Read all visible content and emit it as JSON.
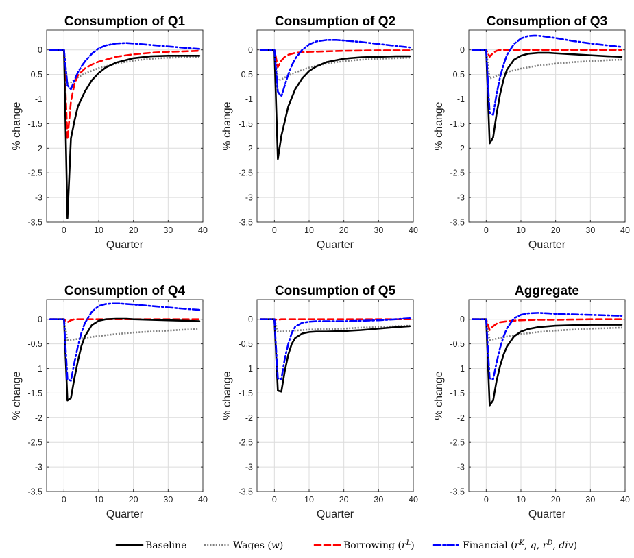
{
  "chart_data": [
    {
      "type": "line",
      "title": "Consumption of Q1",
      "xlabel": "Quarter",
      "ylabel": "% change",
      "xlim": [
        -5,
        40
      ],
      "ylim": [
        -3.5,
        0.4
      ],
      "xticks": [
        0,
        10,
        20,
        30,
        40
      ],
      "yticks": [
        0,
        -0.5,
        -1,
        -1.5,
        -2,
        -2.5,
        -3,
        -3.5
      ],
      "grid": true,
      "series": [
        {
          "name": "Baseline",
          "color": "#000000",
          "style": "solid",
          "x": [
            -4,
            0,
            1,
            2,
            3,
            4,
            6,
            8,
            10,
            12,
            15,
            20,
            25,
            30,
            35,
            39
          ],
          "y": [
            0,
            0,
            -3.42,
            -1.8,
            -1.45,
            -1.15,
            -0.85,
            -0.62,
            -0.47,
            -0.36,
            -0.26,
            -0.17,
            -0.13,
            -0.12,
            -0.12,
            -0.12
          ]
        },
        {
          "name": "Wages (w)",
          "color": "#808080",
          "style": "dotted",
          "x": [
            -4,
            0,
            1,
            2,
            4,
            6,
            10,
            15,
            20,
            25,
            30,
            35,
            39
          ],
          "y": [
            0,
            0,
            -0.7,
            -0.66,
            -0.56,
            -0.48,
            -0.37,
            -0.28,
            -0.22,
            -0.18,
            -0.16,
            -0.15,
            -0.14
          ]
        },
        {
          "name": "Borrowing (r^L)",
          "color": "#ff0000",
          "style": "dashed",
          "x": [
            -4,
            0,
            1,
            2,
            3,
            4,
            6,
            8,
            10,
            15,
            20,
            25,
            30,
            35,
            39
          ],
          "y": [
            0,
            0,
            -1.82,
            -1.05,
            -0.7,
            -0.52,
            -0.38,
            -0.3,
            -0.24,
            -0.14,
            -0.09,
            -0.06,
            -0.04,
            -0.03,
            -0.02
          ]
        },
        {
          "name": "Financial (r^K, q, r^D, div)",
          "color": "#0000ff",
          "style": "dashdot",
          "x": [
            -4,
            0,
            1,
            2,
            3,
            4,
            5,
            6,
            8,
            10,
            12,
            15,
            18,
            20,
            25,
            30,
            35,
            39
          ],
          "y": [
            0,
            0,
            -0.72,
            -0.8,
            -0.62,
            -0.46,
            -0.34,
            -0.24,
            -0.08,
            0.03,
            0.09,
            0.13,
            0.14,
            0.13,
            0.1,
            0.07,
            0.04,
            0.02
          ]
        }
      ]
    },
    {
      "type": "line",
      "title": "Consumption of Q2",
      "xlabel": "Quarter",
      "ylabel": "% change",
      "xlim": [
        -5,
        40
      ],
      "ylim": [
        -3.5,
        0.4
      ],
      "xticks": [
        0,
        10,
        20,
        30,
        40
      ],
      "yticks": [
        0,
        -0.5,
        -1,
        -1.5,
        -2,
        -2.5,
        -3,
        -3.5
      ],
      "grid": true,
      "series": [
        {
          "name": "Baseline",
          "color": "#000000",
          "style": "solid",
          "x": [
            -4,
            0,
            1,
            2,
            3,
            4,
            6,
            8,
            10,
            12,
            15,
            20,
            25,
            30,
            35,
            39
          ],
          "y": [
            0,
            0,
            -2.22,
            -1.75,
            -1.45,
            -1.15,
            -0.8,
            -0.58,
            -0.43,
            -0.34,
            -0.25,
            -0.18,
            -0.15,
            -0.14,
            -0.13,
            -0.13
          ]
        },
        {
          "name": "Wages (w)",
          "color": "#808080",
          "style": "dotted",
          "x": [
            -4,
            0,
            1,
            2,
            4,
            6,
            10,
            15,
            20,
            25,
            30,
            35,
            39
          ],
          "y": [
            0,
            0,
            -0.62,
            -0.6,
            -0.52,
            -0.46,
            -0.36,
            -0.28,
            -0.23,
            -0.2,
            -0.18,
            -0.17,
            -0.16
          ]
        },
        {
          "name": "Borrowing (r^L)",
          "color": "#ff0000",
          "style": "dashed",
          "x": [
            -4,
            0,
            1,
            2,
            3,
            4,
            6,
            8,
            10,
            15,
            20,
            30,
            39
          ],
          "y": [
            0,
            0,
            -0.35,
            -0.22,
            -0.14,
            -0.1,
            -0.06,
            -0.05,
            -0.04,
            -0.03,
            -0.02,
            -0.01,
            -0.01
          ]
        },
        {
          "name": "Financial (r^K, q, r^D, div)",
          "color": "#0000ff",
          "style": "dashdot",
          "x": [
            -4,
            0,
            1,
            2,
            3,
            4,
            5,
            6,
            8,
            10,
            12,
            15,
            18,
            20,
            25,
            30,
            35,
            39
          ],
          "y": [
            0,
            0,
            -0.85,
            -0.95,
            -0.72,
            -0.5,
            -0.32,
            -0.18,
            0.0,
            0.11,
            0.17,
            0.2,
            0.2,
            0.19,
            0.16,
            0.12,
            0.08,
            0.05
          ]
        }
      ]
    },
    {
      "type": "line",
      "title": "Consumption of Q3",
      "xlabel": "Quarter",
      "ylabel": "% change",
      "xlim": [
        -5,
        40
      ],
      "ylim": [
        -3.5,
        0.4
      ],
      "xticks": [
        0,
        10,
        20,
        30,
        40
      ],
      "yticks": [
        0,
        -0.5,
        -1,
        -1.5,
        -2,
        -2.5,
        -3,
        -3.5
      ],
      "grid": true,
      "series": [
        {
          "name": "Baseline",
          "color": "#000000",
          "style": "solid",
          "x": [
            -4,
            0,
            1,
            2,
            3,
            4,
            5,
            6,
            8,
            10,
            12,
            15,
            18,
            20,
            25,
            30,
            35,
            39
          ],
          "y": [
            0,
            0,
            -1.9,
            -1.78,
            -1.3,
            -0.9,
            -0.6,
            -0.4,
            -0.2,
            -0.12,
            -0.08,
            -0.06,
            -0.06,
            -0.07,
            -0.09,
            -0.11,
            -0.13,
            -0.14
          ]
        },
        {
          "name": "Wages (w)",
          "color": "#808080",
          "style": "dotted",
          "x": [
            -4,
            0,
            1,
            2,
            4,
            6,
            10,
            15,
            20,
            25,
            30,
            35,
            39
          ],
          "y": [
            0,
            0,
            -0.58,
            -0.56,
            -0.5,
            -0.45,
            -0.38,
            -0.32,
            -0.28,
            -0.25,
            -0.23,
            -0.21,
            -0.2
          ]
        },
        {
          "name": "Borrowing (r^L)",
          "color": "#ff0000",
          "style": "dashed",
          "x": [
            -4,
            0,
            1,
            2,
            3,
            4,
            6,
            10,
            20,
            30,
            39
          ],
          "y": [
            0,
            0,
            -0.14,
            -0.06,
            -0.02,
            0.0,
            0.0,
            0.0,
            0.0,
            0.0,
            0.0
          ]
        },
        {
          "name": "Financial (r^K, q, r^D, div)",
          "color": "#0000ff",
          "style": "dashdot",
          "x": [
            -4,
            0,
            1,
            2,
            3,
            4,
            5,
            6,
            8,
            10,
            12,
            14,
            16,
            20,
            25,
            30,
            35,
            39
          ],
          "y": [
            0,
            0,
            -1.28,
            -1.32,
            -0.9,
            -0.55,
            -0.3,
            -0.1,
            0.12,
            0.23,
            0.28,
            0.29,
            0.28,
            0.24,
            0.18,
            0.13,
            0.09,
            0.06
          ]
        }
      ]
    },
    {
      "type": "line",
      "title": "Consumption of Q4",
      "xlabel": "Quarter",
      "ylabel": "% change",
      "xlim": [
        -5,
        40
      ],
      "ylim": [
        -3.5,
        0.4
      ],
      "xticks": [
        0,
        10,
        20,
        30,
        40
      ],
      "yticks": [
        0,
        -0.5,
        -1,
        -1.5,
        -2,
        -2.5,
        -3,
        -3.5
      ],
      "grid": true,
      "series": [
        {
          "name": "Baseline",
          "color": "#000000",
          "style": "solid",
          "x": [
            -4,
            0,
            1,
            2,
            3,
            4,
            5,
            6,
            8,
            10,
            12,
            15,
            18,
            20,
            25,
            30,
            35,
            39
          ],
          "y": [
            0,
            0,
            -1.65,
            -1.6,
            -1.2,
            -0.85,
            -0.55,
            -0.35,
            -0.12,
            -0.03,
            0.0,
            0.01,
            0.01,
            0.0,
            -0.01,
            -0.02,
            -0.03,
            -0.04
          ]
        },
        {
          "name": "Wages (w)",
          "color": "#808080",
          "style": "dotted",
          "x": [
            -4,
            0,
            1,
            2,
            4,
            6,
            10,
            15,
            20,
            25,
            30,
            35,
            39
          ],
          "y": [
            0,
            0,
            -0.42,
            -0.42,
            -0.4,
            -0.38,
            -0.34,
            -0.3,
            -0.27,
            -0.25,
            -0.23,
            -0.21,
            -0.2
          ]
        },
        {
          "name": "Borrowing (r^L)",
          "color": "#ff0000",
          "style": "dashed",
          "x": [
            -4,
            0,
            1,
            2,
            3,
            4,
            6,
            10,
            20,
            30,
            39
          ],
          "y": [
            0,
            0,
            -0.06,
            -0.02,
            0.0,
            0.0,
            0.0,
            0.0,
            0.0,
            0.0,
            0.0
          ]
        },
        {
          "name": "Financial (r^K, q, r^D, div)",
          "color": "#0000ff",
          "style": "dashdot",
          "x": [
            -4,
            0,
            1,
            2,
            3,
            4,
            5,
            6,
            8,
            10,
            12,
            14,
            16,
            20,
            25,
            30,
            35,
            39
          ],
          "y": [
            0,
            0,
            -1.22,
            -1.25,
            -0.88,
            -0.55,
            -0.28,
            -0.08,
            0.15,
            0.27,
            0.31,
            0.32,
            0.32,
            0.3,
            0.27,
            0.24,
            0.21,
            0.19
          ]
        }
      ]
    },
    {
      "type": "line",
      "title": "Consumption of Q5",
      "xlabel": "Quarter",
      "ylabel": "% change",
      "xlim": [
        -5,
        40
      ],
      "ylim": [
        -3.5,
        0.4
      ],
      "xticks": [
        0,
        10,
        20,
        30,
        40
      ],
      "yticks": [
        0,
        -0.5,
        -1,
        -1.5,
        -2,
        -2.5,
        -3,
        -3.5
      ],
      "grid": true,
      "series": [
        {
          "name": "Baseline",
          "color": "#000000",
          "style": "solid",
          "x": [
            -4,
            0,
            1,
            2,
            3,
            4,
            5,
            6,
            8,
            10,
            12,
            15,
            20,
            25,
            30,
            35,
            39
          ],
          "y": [
            0,
            0,
            -1.45,
            -1.47,
            -1.05,
            -0.72,
            -0.5,
            -0.38,
            -0.29,
            -0.26,
            -0.25,
            -0.25,
            -0.24,
            -0.22,
            -0.19,
            -0.16,
            -0.14
          ]
        },
        {
          "name": "Wages (w)",
          "color": "#808080",
          "style": "dotted",
          "x": [
            -4,
            0,
            1,
            2,
            4,
            6,
            10,
            15,
            20,
            25,
            30,
            35,
            39
          ],
          "y": [
            0,
            0,
            -0.25,
            -0.25,
            -0.24,
            -0.23,
            -0.21,
            -0.2,
            -0.19,
            -0.17,
            -0.16,
            -0.14,
            -0.13
          ]
        },
        {
          "name": "Borrowing (r^L)",
          "color": "#ff0000",
          "style": "dashed",
          "x": [
            -4,
            0,
            1,
            2,
            4,
            10,
            20,
            30,
            39
          ],
          "y": [
            0,
            0,
            -0.01,
            0.0,
            0.0,
            0.0,
            0.0,
            0.0,
            0.0
          ]
        },
        {
          "name": "Financial (r^K, q, r^D, div)",
          "color": "#0000ff",
          "style": "dashdot",
          "x": [
            -4,
            0,
            1,
            2,
            3,
            4,
            5,
            6,
            8,
            10,
            12,
            15,
            20,
            25,
            30,
            35,
            39
          ],
          "y": [
            0,
            0,
            -1.2,
            -1.22,
            -0.8,
            -0.5,
            -0.28,
            -0.15,
            -0.07,
            -0.05,
            -0.04,
            -0.04,
            -0.04,
            -0.03,
            -0.02,
            0.0,
            0.02
          ]
        }
      ]
    },
    {
      "type": "line",
      "title": "Aggregate",
      "xlabel": "Quarter",
      "ylabel": "% change",
      "xlim": [
        -5,
        40
      ],
      "ylim": [
        -3.5,
        0.4
      ],
      "xticks": [
        0,
        10,
        20,
        30,
        40
      ],
      "yticks": [
        0,
        -0.5,
        -1,
        -1.5,
        -2,
        -2.5,
        -3,
        -3.5
      ],
      "grid": true,
      "series": [
        {
          "name": "Baseline",
          "color": "#000000",
          "style": "solid",
          "x": [
            -4,
            0,
            1,
            2,
            3,
            4,
            5,
            6,
            8,
            10,
            12,
            15,
            20,
            25,
            30,
            35,
            39
          ],
          "y": [
            0,
            0,
            -1.75,
            -1.65,
            -1.25,
            -0.95,
            -0.72,
            -0.55,
            -0.35,
            -0.25,
            -0.2,
            -0.16,
            -0.13,
            -0.12,
            -0.11,
            -0.11,
            -0.11
          ]
        },
        {
          "name": "Wages (w)",
          "color": "#808080",
          "style": "dotted",
          "x": [
            -4,
            0,
            1,
            2,
            4,
            6,
            10,
            15,
            20,
            25,
            30,
            35,
            39
          ],
          "y": [
            0,
            0,
            -0.42,
            -0.41,
            -0.38,
            -0.35,
            -0.3,
            -0.26,
            -0.23,
            -0.21,
            -0.19,
            -0.18,
            -0.17
          ]
        },
        {
          "name": "Borrowing (r^L)",
          "color": "#ff0000",
          "style": "dashed",
          "x": [
            -4,
            0,
            1,
            2,
            3,
            4,
            6,
            8,
            10,
            15,
            20,
            30,
            39
          ],
          "y": [
            0,
            0,
            -0.22,
            -0.14,
            -0.09,
            -0.06,
            -0.04,
            -0.03,
            -0.02,
            -0.01,
            -0.01,
            0.0,
            0.0
          ]
        },
        {
          "name": "Financial (r^K, q, r^D, div)",
          "color": "#0000ff",
          "style": "dashdot",
          "x": [
            -4,
            0,
            1,
            2,
            3,
            4,
            5,
            6,
            8,
            10,
            12,
            15,
            18,
            20,
            25,
            30,
            35,
            39
          ],
          "y": [
            0,
            0,
            -1.2,
            -1.22,
            -0.88,
            -0.58,
            -0.35,
            -0.18,
            0.02,
            0.09,
            0.12,
            0.13,
            0.12,
            0.11,
            0.1,
            0.09,
            0.08,
            0.07
          ]
        }
      ]
    }
  ],
  "legend": {
    "placement": "bottom",
    "entries": [
      {
        "label": "Baseline",
        "color": "#000000",
        "style": "solid"
      },
      {
        "label": "Wages (w)",
        "color": "#808080",
        "style": "dotted"
      },
      {
        "label": "Borrowing (r^L)",
        "color": "#ff0000",
        "style": "dashed"
      },
      {
        "label": "Financial (r^K, q, r^D, div)",
        "color": "#0000ff",
        "style": "dashdot"
      }
    ]
  }
}
